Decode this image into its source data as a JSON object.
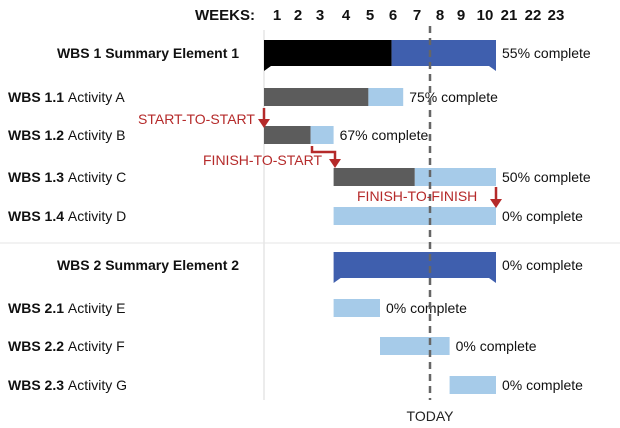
{
  "header": {
    "weeks_label": "WEEKS:",
    "week_numbers": [
      "1",
      "2",
      "3",
      "4",
      "5",
      "6",
      "7",
      "8",
      "9",
      "10",
      "21",
      "22",
      "23"
    ]
  },
  "colors": {
    "summary_done": "#000000",
    "summary_remaining": "#3f5fae",
    "activity_done": "#5c5c5c",
    "activity_remaining": "#a6cbe9",
    "dependency": "#b52a2a",
    "today_line": "#666666",
    "divider": "#d9d9d9"
  },
  "rows": [
    {
      "id": "wbs-1",
      "kind": "summary",
      "code": "WBS 1",
      "name": "Summary Element 1",
      "label": "WBS 1 Summary Element 1",
      "start_week": 1,
      "end_week": 10,
      "percent_complete": 55,
      "status_text": "55% complete"
    },
    {
      "id": "wbs-1-1",
      "kind": "activity",
      "code": "WBS 1.1",
      "name": "Activity A",
      "start_week": 1,
      "end_week": 6,
      "percent_complete": 75,
      "status_text": "75% complete"
    },
    {
      "id": "wbs-1-2",
      "kind": "activity",
      "code": "WBS 1.2",
      "name": "Activity B",
      "start_week": 1,
      "end_week": 3,
      "percent_complete": 67,
      "status_text": "67% complete"
    },
    {
      "id": "wbs-1-3",
      "kind": "activity",
      "code": "WBS 1.3",
      "name": "Activity C",
      "start_week": 4,
      "end_week": 10,
      "percent_complete": 50,
      "status_text": "50% complete"
    },
    {
      "id": "wbs-1-4",
      "kind": "activity",
      "code": "WBS 1.4",
      "name": "Activity D",
      "start_week": 4,
      "end_week": 10,
      "percent_complete": 0,
      "status_text": "0% complete"
    },
    {
      "id": "wbs-2",
      "kind": "summary",
      "code": "WBS 2",
      "name": "Summary Element 2",
      "label": "WBS 2 Summary Element 2",
      "start_week": 4,
      "end_week": 10,
      "percent_complete": 0,
      "status_text": "0% complete"
    },
    {
      "id": "wbs-2-1",
      "kind": "activity",
      "code": "WBS 2.1",
      "name": "Activity E",
      "start_week": 4,
      "end_week": 5,
      "percent_complete": 0,
      "status_text": "0% complete"
    },
    {
      "id": "wbs-2-2",
      "kind": "activity",
      "code": "WBS 2.2",
      "name": "Activity F",
      "start_week": 6,
      "end_week": 8,
      "percent_complete": 0,
      "status_text": "0% complete"
    },
    {
      "id": "wbs-2-3",
      "kind": "activity",
      "code": "WBS 2.3",
      "name": "Activity G",
      "start_week": 9,
      "end_week": 10,
      "percent_complete": 0,
      "status_text": "0% complete"
    }
  ],
  "dependencies": [
    {
      "type": "start-to-start",
      "label": "START-TO-START",
      "from_row": 1,
      "to_row": 2
    },
    {
      "type": "finish-to-start",
      "label": "FINISH-TO-START",
      "from_row": 2,
      "to_row": 3
    },
    {
      "type": "finish-to-finish",
      "label": "FINISH-TO-FINISH",
      "from_row": 3,
      "to_row": 4
    }
  ],
  "today": {
    "label": "TODAY"
  }
}
